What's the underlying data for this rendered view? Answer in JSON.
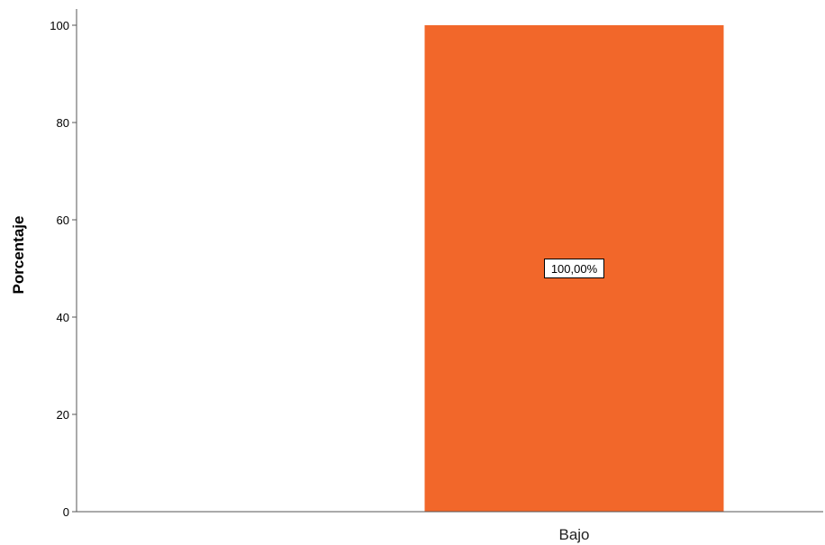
{
  "chart_data": {
    "type": "bar",
    "categories": [
      "Bajo"
    ],
    "values": [
      100
    ],
    "data_labels": [
      "100,00%"
    ],
    "ylabel": "Porcentaje",
    "ylim": [
      0,
      100
    ],
    "yticks": [
      "0",
      "20",
      "40",
      "60",
      "80",
      "100"
    ],
    "bar_color": "#F2672A",
    "grid": false
  }
}
